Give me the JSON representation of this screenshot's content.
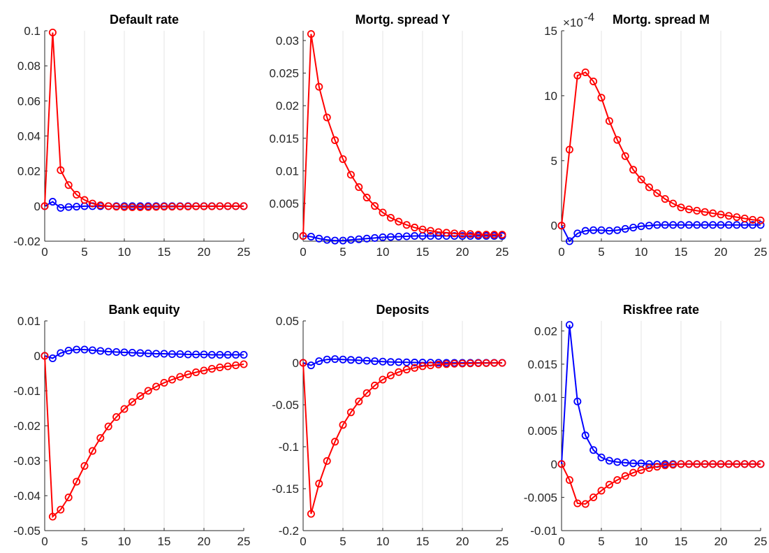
{
  "figure": {
    "series_colors": {
      "blue": "#0000ff",
      "red": "#ff0000"
    }
  },
  "chart_data": [
    {
      "type": "line",
      "title": "Default rate",
      "x": [
        0,
        1,
        2,
        3,
        4,
        5,
        6,
        7,
        8,
        9,
        10,
        11,
        12,
        13,
        14,
        15,
        16,
        17,
        18,
        19,
        20,
        21,
        22,
        23,
        24,
        25
      ],
      "xlim": [
        0,
        25
      ],
      "ylim": [
        -0.02,
        0.1
      ],
      "xticks": [
        0,
        5,
        10,
        15,
        20,
        25
      ],
      "xtick_labels": [
        "0",
        "5",
        "10",
        "15",
        "20",
        "25"
      ],
      "yticks": [
        -0.02,
        0,
        0.02,
        0.04,
        0.06,
        0.08,
        0.1
      ],
      "ytick_labels": [
        "-0.02",
        "0",
        "0.02",
        "0.04",
        "0.06",
        "0.08",
        "0.1"
      ],
      "grid": "vertical",
      "series": [
        {
          "color": "#0000ff",
          "values": [
            0,
            0.0025,
            -0.001,
            -0.0005,
            -0.0003,
            0,
            0,
            0,
            0,
            0,
            0,
            0,
            0,
            0,
            0,
            0,
            0,
            0,
            0,
            0,
            0,
            0,
            0,
            0,
            0,
            0
          ]
        },
        {
          "color": "#ff0000",
          "values": [
            0,
            0.099,
            0.0205,
            0.012,
            0.0065,
            0.0035,
            0.0015,
            0.0005,
            0,
            -0.0003,
            -0.0005,
            -0.0006,
            -0.0006,
            -0.0005,
            -0.0004,
            -0.0003,
            -0.0003,
            -0.0002,
            -0.0002,
            -0.0001,
            -0.0001,
            -0.0001,
            0,
            0,
            0,
            0
          ]
        }
      ]
    },
    {
      "type": "line",
      "title": "Mortg. spread Y",
      "x": [
        0,
        1,
        2,
        3,
        4,
        5,
        6,
        7,
        8,
        9,
        10,
        11,
        12,
        13,
        14,
        15,
        16,
        17,
        18,
        19,
        20,
        21,
        22,
        23,
        24,
        25
      ],
      "xlim": [
        0,
        25
      ],
      "ylim": [
        -0.0008,
        0.0315
      ],
      "xticks": [
        0,
        5,
        10,
        15,
        20,
        25
      ],
      "xtick_labels": [
        "0",
        "5",
        "10",
        "15",
        "20",
        "25"
      ],
      "yticks": [
        0,
        0.005,
        0.01,
        0.015,
        0.02,
        0.025,
        0.03
      ],
      "ytick_labels": [
        "0",
        "0.005",
        "0.01",
        "0.015",
        "0.02",
        "0.025",
        "0.03"
      ],
      "grid": "vertical",
      "series": [
        {
          "color": "#0000ff",
          "values": [
            0,
            -0.0001,
            -0.0004,
            -0.0006,
            -0.0007,
            -0.0007,
            -0.0006,
            -0.0005,
            -0.0004,
            -0.0003,
            -0.0002,
            -0.00015,
            -0.0001,
            -5e-05,
            0,
            0,
            0,
            0,
            0,
            0,
            0,
            0,
            0,
            0,
            0,
            0
          ]
        },
        {
          "color": "#ff0000",
          "values": [
            0,
            0.031,
            0.0229,
            0.0182,
            0.0147,
            0.0118,
            0.0094,
            0.0075,
            0.0059,
            0.0046,
            0.0036,
            0.0028,
            0.0022,
            0.0017,
            0.0013,
            0.001,
            0.0008,
            0.0006,
            0.0005,
            0.0004,
            0.0003,
            0.0003,
            0.0002,
            0.0002,
            0.0002,
            0.0002
          ]
        }
      ]
    },
    {
      "type": "line",
      "title": "Mortg. spread M",
      "axis_exponent": "×10",
      "axis_exponent_power": "-4",
      "x": [
        0,
        1,
        2,
        3,
        4,
        5,
        6,
        7,
        8,
        9,
        10,
        11,
        12,
        13,
        14,
        15,
        16,
        17,
        18,
        19,
        20,
        21,
        22,
        23,
        24,
        25
      ],
      "xlim": [
        0,
        25
      ],
      "ylim": [
        -1.2,
        15
      ],
      "xticks": [
        0,
        5,
        10,
        15,
        20,
        25
      ],
      "xtick_labels": [
        "0",
        "5",
        "10",
        "15",
        "20",
        "25"
      ],
      "yticks": [
        0,
        5,
        10,
        15
      ],
      "ytick_labels": [
        "0",
        "5",
        "10",
        "15"
      ],
      "grid": "vertical",
      "series": [
        {
          "color": "#0000ff",
          "values": [
            0,
            -1.2,
            -0.6,
            -0.4,
            -0.35,
            -0.35,
            -0.4,
            -0.35,
            -0.25,
            -0.15,
            -0.05,
            0,
            0.05,
            0.05,
            0.05,
            0.05,
            0.05,
            0.05,
            0.05,
            0.05,
            0.05,
            0.05,
            0.05,
            0.05,
            0.05,
            0.05
          ]
        },
        {
          "color": "#ff0000",
          "values": [
            0,
            5.85,
            11.55,
            11.8,
            11.1,
            9.85,
            8.05,
            6.6,
            5.35,
            4.3,
            3.55,
            2.95,
            2.5,
            2.05,
            1.7,
            1.4,
            1.25,
            1.15,
            1.05,
            0.95,
            0.85,
            0.75,
            0.65,
            0.55,
            0.45,
            0.4
          ]
        }
      ]
    },
    {
      "type": "line",
      "title": "Bank equity",
      "x": [
        0,
        1,
        2,
        3,
        4,
        5,
        6,
        7,
        8,
        9,
        10,
        11,
        12,
        13,
        14,
        15,
        16,
        17,
        18,
        19,
        20,
        21,
        22,
        23,
        24,
        25
      ],
      "xlim": [
        0,
        25
      ],
      "ylim": [
        -0.05,
        0.01
      ],
      "xticks": [
        0,
        5,
        10,
        15,
        20,
        25
      ],
      "xtick_labels": [
        "0",
        "5",
        "10",
        "15",
        "20",
        "25"
      ],
      "yticks": [
        -0.05,
        -0.04,
        -0.03,
        -0.02,
        -0.01,
        0,
        0.01
      ],
      "ytick_labels": [
        "-0.05",
        "-0.04",
        "-0.03",
        "-0.02",
        "-0.01",
        "0",
        "0.01"
      ],
      "grid": "vertical",
      "series": [
        {
          "color": "#0000ff",
          "values": [
            0,
            -0.0007,
            0.0008,
            0.0015,
            0.0018,
            0.0018,
            0.0016,
            0.0014,
            0.0012,
            0.0011,
            0.001,
            0.0009,
            0.0008,
            0.0007,
            0.0006,
            0.0006,
            0.0005,
            0.0005,
            0.0004,
            0.0004,
            0.0004,
            0.0003,
            0.0003,
            0.0003,
            0.0003,
            0.0003
          ]
        },
        {
          "color": "#ff0000",
          "values": [
            0,
            -0.046,
            -0.044,
            -0.0405,
            -0.036,
            -0.0315,
            -0.0272,
            -0.0235,
            -0.0202,
            -0.0175,
            -0.0152,
            -0.0132,
            -0.0115,
            -0.01,
            -0.0088,
            -0.0077,
            -0.0068,
            -0.006,
            -0.0053,
            -0.0047,
            -0.0042,
            -0.0037,
            -0.0033,
            -0.003,
            -0.0027,
            -0.0024
          ]
        }
      ]
    },
    {
      "type": "line",
      "title": "Deposits",
      "x": [
        0,
        1,
        2,
        3,
        4,
        5,
        6,
        7,
        8,
        9,
        10,
        11,
        12,
        13,
        14,
        15,
        16,
        17,
        18,
        19,
        20,
        21,
        22,
        23,
        24,
        25
      ],
      "xlim": [
        0,
        25
      ],
      "ylim": [
        -0.2,
        0.05
      ],
      "xticks": [
        0,
        5,
        10,
        15,
        20,
        25
      ],
      "xtick_labels": [
        "0",
        "5",
        "10",
        "15",
        "20",
        "25"
      ],
      "yticks": [
        -0.2,
        -0.15,
        -0.1,
        -0.05,
        0,
        0.05
      ],
      "ytick_labels": [
        "-0.2",
        "-0.15",
        "-0.1",
        "-0.05",
        "0",
        "0.05"
      ],
      "grid": "vertical",
      "series": [
        {
          "color": "#0000ff",
          "values": [
            0,
            -0.003,
            0.002,
            0.004,
            0.0045,
            0.004,
            0.0035,
            0.003,
            0.0025,
            0.002,
            0.0015,
            0.001,
            0.0008,
            0.0006,
            0.0004,
            0.0003,
            0.0002,
            0.0001,
            0,
            0,
            0,
            0,
            0,
            0,
            0,
            0
          ]
        },
        {
          "color": "#ff0000",
          "values": [
            0,
            -0.18,
            -0.144,
            -0.117,
            -0.094,
            -0.074,
            -0.059,
            -0.046,
            -0.036,
            -0.027,
            -0.02,
            -0.015,
            -0.011,
            -0.008,
            -0.006,
            -0.004,
            -0.003,
            -0.002,
            -0.0015,
            -0.001,
            -0.0008,
            -0.0006,
            -0.0004,
            -0.0003,
            -0.0002,
            -0.0001
          ]
        }
      ]
    },
    {
      "type": "line",
      "title": "Riskfree rate",
      "x": [
        0,
        1,
        2,
        3,
        4,
        5,
        6,
        7,
        8,
        9,
        10,
        11,
        12,
        13,
        14,
        15,
        16,
        17,
        18,
        19,
        20,
        21,
        22,
        23,
        24,
        25
      ],
      "xlim": [
        0,
        25
      ],
      "ylim": [
        -0.01,
        0.0215
      ],
      "xticks": [
        0,
        5,
        10,
        15,
        20,
        25
      ],
      "xtick_labels": [
        "0",
        "5",
        "10",
        "15",
        "20",
        "25"
      ],
      "yticks": [
        -0.01,
        -0.005,
        0,
        0.005,
        0.01,
        0.015,
        0.02
      ],
      "ytick_labels": [
        "-0.01",
        "-0.005",
        "0",
        "0.005",
        "0.01",
        "0.015",
        "0.02"
      ],
      "grid": "vertical",
      "series": [
        {
          "color": "#0000ff",
          "values": [
            0,
            0.0209,
            0.0094,
            0.0043,
            0.0021,
            0.001,
            0.0005,
            0.0003,
            0.0002,
            0.0001,
            0.0001,
            0,
            0,
            0,
            0,
            0,
            0,
            0,
            0,
            0,
            0,
            0,
            0,
            0,
            0,
            0
          ]
        },
        {
          "color": "#ff0000",
          "values": [
            0,
            -0.0024,
            -0.0059,
            -0.006,
            -0.005,
            -0.004,
            -0.0031,
            -0.0024,
            -0.0018,
            -0.0013,
            -0.0009,
            -0.0006,
            -0.0004,
            -0.0002,
            -0.0001,
            0,
            0,
            0,
            0,
            0,
            0,
            0,
            0,
            0,
            0,
            0
          ]
        }
      ]
    }
  ]
}
